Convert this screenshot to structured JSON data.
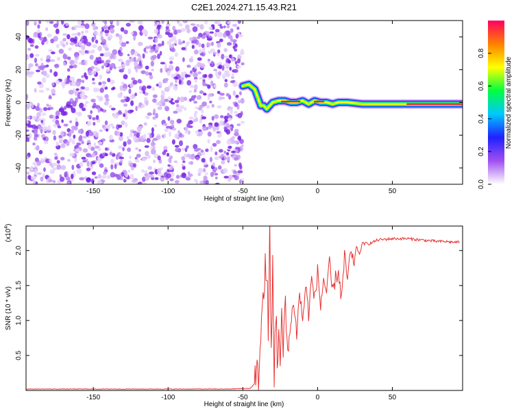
{
  "title": "C2E1.2024.271.15.43.R21",
  "chart_data": [
    {
      "type": "heatmap",
      "xlabel": "Height of straight line (km)",
      "ylabel": "Frequency (Hz)",
      "xlim": [
        -195,
        97
      ],
      "ylim": [
        -50,
        50
      ],
      "x_ticks": [
        -150,
        -100,
        -50,
        0,
        50
      ],
      "y_ticks": [
        -40,
        -20,
        0,
        20,
        40
      ],
      "noise_region": {
        "x": [
          -195,
          -50
        ],
        "y": [
          -50,
          50
        ]
      },
      "ridge": {
        "x": [
          -50,
          -46,
          -42,
          -40,
          -38,
          -36,
          -34,
          -32,
          -30,
          -26,
          -22,
          -18,
          -14,
          -10,
          -6,
          -2,
          2,
          6,
          10,
          14,
          20,
          30,
          40,
          60,
          80,
          97
        ],
        "y": [
          10,
          11,
          8,
          3,
          -2,
          -2,
          -4,
          -2,
          0,
          1,
          1,
          0,
          0,
          1,
          -1,
          1,
          0,
          0,
          -1,
          0,
          0,
          -1,
          -1,
          -1,
          -1,
          -1
        ]
      },
      "colorbar": {
        "label": "Normalized spectral amplitude",
        "range": [
          0,
          1
        ],
        "ticks": [
          "0.0",
          "0.2",
          "0.4",
          "0.6",
          "0.8"
        ],
        "colors": [
          "#ffffff",
          "#a050f0",
          "#2020ff",
          "#00c8ff",
          "#00ff40",
          "#ffff00",
          "#ff8000",
          "#ff0060"
        ]
      }
    },
    {
      "type": "line",
      "xlabel": "Height of straight line (km)",
      "ylabel": "SNR (10 * v/v)",
      "y_scale_note": "(x10",
      "y_scale_exp": "4",
      "xlim": [
        -195,
        97
      ],
      "ylim": [
        0,
        2.35
      ],
      "x_ticks": [
        -150,
        -100,
        -50,
        0,
        50
      ],
      "y_ticks": [
        "0.5",
        "1.0",
        "1.5",
        "2.0"
      ],
      "color": "#e83030",
      "series": [
        {
          "x": [
            -195,
            -150,
            -100,
            -60,
            -45,
            -40,
            -38,
            -36,
            -34,
            -33,
            -32,
            -31,
            -30,
            -29,
            -28,
            -27,
            -26,
            -25,
            -24,
            -23,
            -22,
            -20,
            -18,
            -16,
            -14,
            -12,
            -10,
            -8,
            -6,
            -4,
            -2,
            0,
            2,
            4,
            6,
            8,
            10,
            12,
            14,
            16,
            18,
            20,
            22,
            24,
            26,
            28,
            30,
            35,
            40,
            45,
            50,
            55,
            60,
            65,
            70,
            75,
            80,
            85,
            90,
            95
          ],
          "y": [
            0.02,
            0.02,
            0.02,
            0.02,
            0.03,
            0.15,
            0.8,
            1.4,
            1.9,
            0.6,
            2.3,
            0.4,
            1.8,
            0.3,
            1.2,
            0.4,
            1.0,
            0.3,
            0.9,
            0.5,
            1.2,
            0.6,
            0.9,
            1.3,
            0.8,
            1.4,
            1.0,
            1.5,
            1.1,
            1.6,
            1.3,
            1.7,
            1.2,
            1.6,
            1.4,
            1.8,
            1.4,
            1.6,
            1.7,
            1.3,
            1.9,
            1.6,
            1.95,
            1.8,
            2.05,
            1.95,
            2.1,
            2.1,
            2.15,
            2.16,
            2.17,
            2.17,
            2.17,
            2.16,
            2.15,
            2.14,
            2.13,
            2.13,
            2.12,
            2.12
          ]
        }
      ]
    }
  ]
}
